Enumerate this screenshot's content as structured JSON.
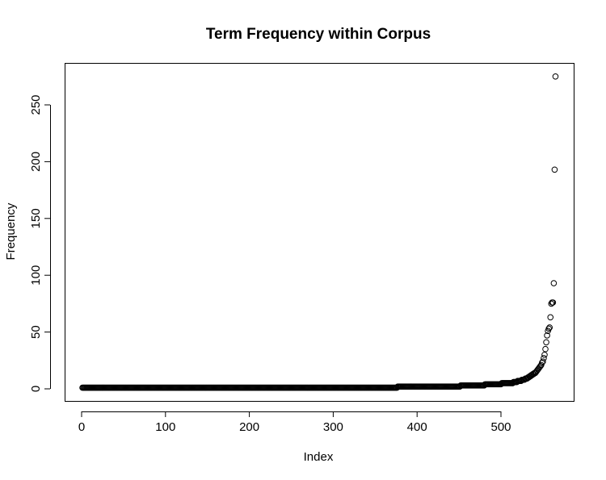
{
  "chart_data": {
    "type": "scatter",
    "title": "Term Frequency within Corpus",
    "xlabel": "Index",
    "ylabel": "Frequency",
    "xlim": [
      0,
      570
    ],
    "ylim": [
      0,
      275
    ],
    "x_ticks": [
      0,
      100,
      200,
      300,
      400,
      500
    ],
    "y_ticks": [
      0,
      50,
      100,
      150,
      200,
      250
    ],
    "x_tick_labels": [
      "0",
      "100",
      "200",
      "300",
      "400",
      "500"
    ],
    "y_tick_labels": [
      "0",
      "50",
      "100",
      "150",
      "200",
      "250"
    ],
    "grid": false,
    "marker": "open-circle",
    "point_color": "#000000",
    "n_points": 565,
    "runs": [
      {
        "from": 1,
        "to": 376,
        "y": 1
      },
      {
        "from": 377,
        "to": 451,
        "y": 2
      },
      {
        "from": 452,
        "to": 480,
        "y": 3
      },
      {
        "from": 481,
        "to": 500,
        "y": 4
      },
      {
        "from": 501,
        "to": 514,
        "y": 5
      },
      {
        "from": 515,
        "to": 519,
        "y": 6
      },
      {
        "from": 520,
        "to": 524,
        "y": 7
      },
      {
        "from": 525,
        "to": 528,
        "y": 8
      },
      {
        "from": 529,
        "to": 531,
        "y": 9
      }
    ],
    "tail_points": [
      {
        "x": 532,
        "y": 10
      },
      {
        "x": 533,
        "y": 10
      },
      {
        "x": 534,
        "y": 11
      },
      {
        "x": 535,
        "y": 11
      },
      {
        "x": 536,
        "y": 12
      },
      {
        "x": 537,
        "y": 12
      },
      {
        "x": 538,
        "y": 13
      },
      {
        "x": 539,
        "y": 13
      },
      {
        "x": 540,
        "y": 14
      },
      {
        "x": 541,
        "y": 14
      },
      {
        "x": 542,
        "y": 15
      },
      {
        "x": 543,
        "y": 16
      },
      {
        "x": 544,
        "y": 17
      },
      {
        "x": 545,
        "y": 18
      },
      {
        "x": 546,
        "y": 19
      },
      {
        "x": 547,
        "y": 20
      },
      {
        "x": 548,
        "y": 21
      },
      {
        "x": 549,
        "y": 23
      },
      {
        "x": 550,
        "y": 24
      },
      {
        "x": 551,
        "y": 27
      },
      {
        "x": 552,
        "y": 30
      },
      {
        "x": 553,
        "y": 35
      },
      {
        "x": 554,
        "y": 41
      },
      {
        "x": 555,
        "y": 47
      },
      {
        "x": 556,
        "y": 51
      },
      {
        "x": 557,
        "y": 53
      },
      {
        "x": 558,
        "y": 54
      },
      {
        "x": 559,
        "y": 63
      },
      {
        "x": 560,
        "y": 75
      },
      {
        "x": 561,
        "y": 76
      },
      {
        "x": 562,
        "y": 76
      },
      {
        "x": 563,
        "y": 93
      },
      {
        "x": 564,
        "y": 193
      },
      {
        "x": 565,
        "y": 275
      }
    ]
  }
}
